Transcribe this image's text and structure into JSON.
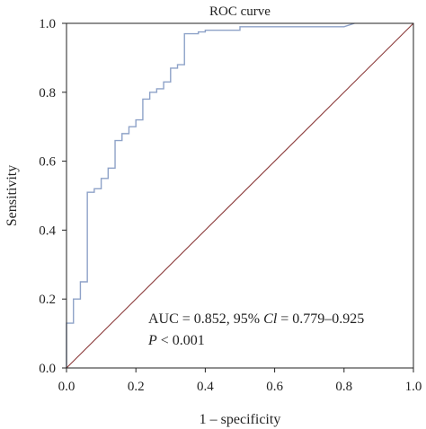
{
  "chart_data": {
    "type": "line",
    "title": "ROC curve",
    "xlabel": "1 – specificity",
    "ylabel": "Sensitivity",
    "xlim": [
      0,
      1
    ],
    "ylim": [
      0,
      1
    ],
    "x_ticks": [
      "0.0",
      "0.2",
      "0.4",
      "0.6",
      "0.8",
      "1.0"
    ],
    "y_ticks": [
      "0.0",
      "0.2",
      "0.4",
      "0.6",
      "0.8",
      "1.0"
    ],
    "grid": false,
    "legend": "none",
    "series": [
      {
        "color": "#8ea2c8",
        "x": [
          0.0,
          0.0,
          0.02,
          0.02,
          0.04,
          0.04,
          0.06,
          0.06,
          0.08,
          0.08,
          0.1,
          0.1,
          0.12,
          0.12,
          0.14,
          0.14,
          0.16,
          0.16,
          0.18,
          0.18,
          0.2,
          0.2,
          0.22,
          0.22,
          0.24,
          0.24,
          0.26,
          0.26,
          0.28,
          0.28,
          0.3,
          0.3,
          0.32,
          0.32,
          0.34,
          0.34,
          0.38,
          0.38,
          0.4,
          0.4,
          0.5,
          0.5,
          0.8,
          0.83
        ],
        "y": [
          0.0,
          0.13,
          0.13,
          0.2,
          0.2,
          0.25,
          0.25,
          0.51,
          0.51,
          0.52,
          0.52,
          0.55,
          0.55,
          0.58,
          0.58,
          0.66,
          0.66,
          0.68,
          0.68,
          0.7,
          0.7,
          0.72,
          0.72,
          0.78,
          0.78,
          0.8,
          0.8,
          0.81,
          0.81,
          0.83,
          0.83,
          0.87,
          0.87,
          0.88,
          0.88,
          0.97,
          0.97,
          0.975,
          0.975,
          0.98,
          0.98,
          0.99,
          0.99,
          1.0
        ]
      },
      {
        "color": "#8b3a3a",
        "x": [
          0,
          1
        ],
        "y": [
          0,
          1
        ]
      }
    ],
    "annotations": [
      {
        "segments": [
          [
            "AUC = 0.852, 95% ",
            false
          ],
          [
            "Cl",
            true
          ],
          [
            " = 0.779–0.925",
            false
          ]
        ]
      },
      {
        "segments": [
          [
            "P",
            true
          ],
          [
            " < 0.001",
            false
          ]
        ]
      }
    ]
  },
  "colors": {
    "roc_curve": "#8ea2c8",
    "reference_line": "#8b3a3a",
    "axis": "#222222"
  }
}
